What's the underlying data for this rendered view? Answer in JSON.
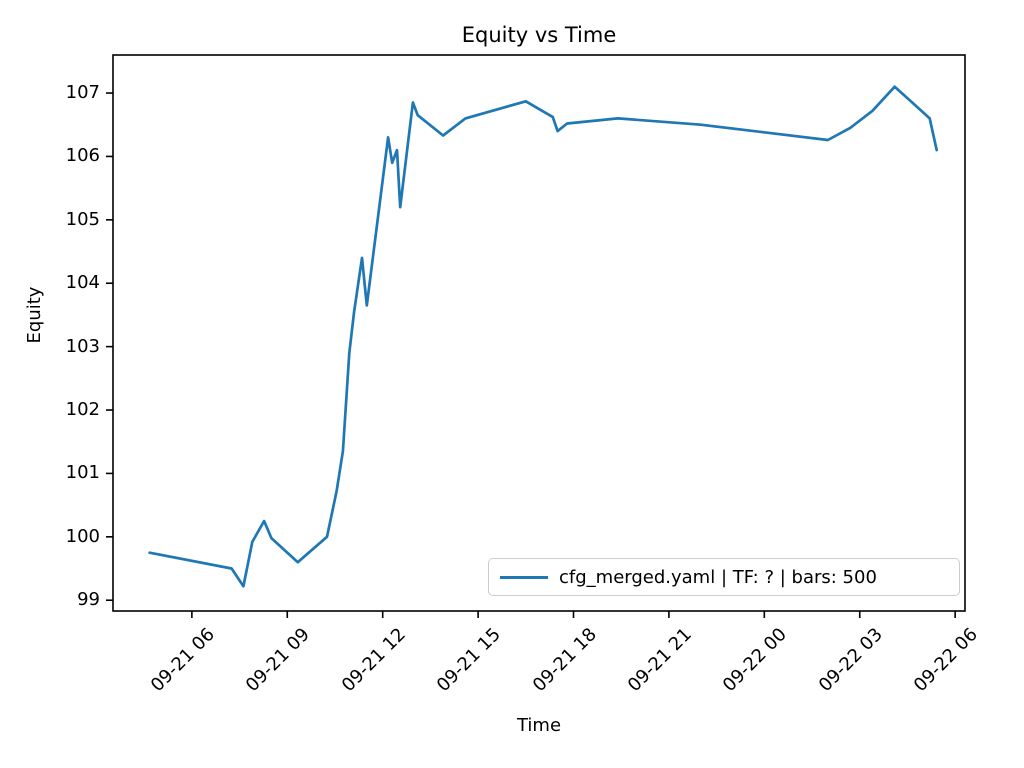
{
  "chart_data": {
    "type": "line",
    "title": "Equity vs Time",
    "xlabel": "Time",
    "ylabel": "Equity",
    "grid": false,
    "legend_position": "lower right",
    "x_axis_note": "x values are hours offset from 09-21 00:00; tick labels show MM-DD HH",
    "xlim_hours": [
      3.52,
      30.31
    ],
    "ylim": [
      98.83,
      107.6
    ],
    "x_ticks": [
      {
        "hour": 6,
        "label": "09-21 06"
      },
      {
        "hour": 9,
        "label": "09-21 09"
      },
      {
        "hour": 12,
        "label": "09-21 12"
      },
      {
        "hour": 15,
        "label": "09-21 15"
      },
      {
        "hour": 18,
        "label": "09-21 18"
      },
      {
        "hour": 21,
        "label": "09-21 21"
      },
      {
        "hour": 24,
        "label": "09-22 00"
      },
      {
        "hour": 27,
        "label": "09-22 03"
      },
      {
        "hour": 30,
        "label": "09-22 06"
      }
    ],
    "y_ticks": [
      99,
      100,
      101,
      102,
      103,
      104,
      105,
      106,
      107
    ],
    "series": [
      {
        "name": "cfg_merged.yaml | TF: ? | bars: 500",
        "color": "#1f77b4",
        "points": [
          [
            4.67,
            99.75
          ],
          [
            7.25,
            99.5
          ],
          [
            7.62,
            99.22
          ],
          [
            7.9,
            99.92
          ],
          [
            8.27,
            100.25
          ],
          [
            8.5,
            99.98
          ],
          [
            9.33,
            99.6
          ],
          [
            10.25,
            100.0
          ],
          [
            10.55,
            100.72
          ],
          [
            10.75,
            101.35
          ],
          [
            10.95,
            102.9
          ],
          [
            11.1,
            103.55
          ],
          [
            11.35,
            104.4
          ],
          [
            11.5,
            103.65
          ],
          [
            12.17,
            106.3
          ],
          [
            12.3,
            105.9
          ],
          [
            12.45,
            106.1
          ],
          [
            12.55,
            105.2
          ],
          [
            12.95,
            106.85
          ],
          [
            13.1,
            106.65
          ],
          [
            13.9,
            106.33
          ],
          [
            14.6,
            106.6
          ],
          [
            16.5,
            106.87
          ],
          [
            17.35,
            106.62
          ],
          [
            17.5,
            106.4
          ],
          [
            17.8,
            106.52
          ],
          [
            19.4,
            106.6
          ],
          [
            22.0,
            106.5
          ],
          [
            26.0,
            106.26
          ],
          [
            26.7,
            106.45
          ],
          [
            27.4,
            106.72
          ],
          [
            28.1,
            107.1
          ],
          [
            28.65,
            106.85
          ],
          [
            29.2,
            106.6
          ],
          [
            29.3,
            106.37
          ],
          [
            29.42,
            106.1
          ]
        ]
      }
    ],
    "axis_color": "#000000",
    "background_color": "#ffffff"
  }
}
